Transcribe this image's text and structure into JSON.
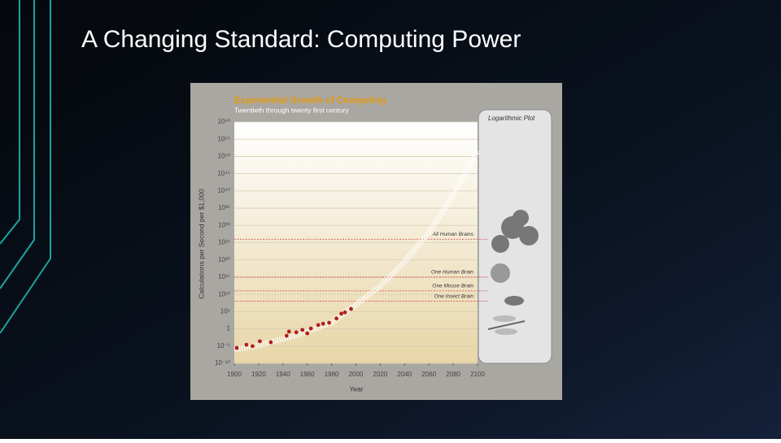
{
  "slide": {
    "title": "A Changing Standard: Computing Power"
  },
  "chart_data": {
    "type": "scatter",
    "title": "Exponential Growth of Computing",
    "subtitle": "Twentieth through twenty first century",
    "x_label": "Year",
    "y_label": "Calculations per Second per $1,000",
    "panel_label": "Logarithmic Plot",
    "log_y": true,
    "grid": true,
    "xlim": [
      1900,
      2100
    ],
    "xticks": [
      1900,
      1920,
      1940,
      1960,
      1980,
      2000,
      2020,
      2040,
      2060,
      2080,
      2100
    ],
    "ylim": [
      1e-10,
      1e+60
    ],
    "yticks": [
      {
        "value": 1e-10,
        "label": "10⁻¹⁰"
      },
      {
        "value": 1e-05,
        "label": "10⁻⁵"
      },
      1,
      {
        "value": 100000.0,
        "label": "10⁵"
      },
      {
        "value": 10000000000.0,
        "label": "10¹⁰"
      },
      {
        "value": 1000000000000000.0,
        "label": "10¹⁵"
      },
      {
        "value": 1e+20,
        "label": "10²⁰"
      },
      {
        "value": 1e+25,
        "label": "10²⁵"
      },
      {
        "value": 1e+30,
        "label": "10³⁰"
      },
      {
        "value": 1e+35,
        "label": "10³⁵"
      },
      {
        "value": 1e+40,
        "label": "10⁴⁰"
      },
      {
        "value": 1e+45,
        "label": "10⁴⁵"
      },
      {
        "value": 1e+50,
        "label": "10⁵⁰"
      },
      {
        "value": 1e+55,
        "label": "10⁵⁵"
      },
      {
        "value": 1e+60,
        "label": "10⁶⁰"
      }
    ],
    "series": [
      {
        "kind": "points",
        "color": "#b01e1e",
        "x": [
          1902,
          1910,
          1915,
          1921,
          1930,
          1943,
          1945,
          1951,
          1956,
          1960,
          1963,
          1969,
          1973,
          1978,
          1984,
          1988,
          1991,
          1996
        ],
        "values": [
          3e-06,
          2.5e-05,
          1e-05,
          0.00025,
          0.00013,
          0.01,
          0.16,
          0.1,
          0.5,
          0.05,
          1.3,
          13,
          30,
          60,
          1000,
          25000,
          60000,
          600000
        ]
      },
      {
        "kind": "projection",
        "color": "#ffffff",
        "x": [
          1900,
          1920,
          1950,
          1980,
          2000,
          2020,
          2040,
          2060,
          2080,
          2100
        ],
        "values": [
          1e-06,
          1.6e-05,
          0.01,
          60,
          10000000.0,
          2500000000000.0,
          3e+19,
          1e+28,
          6e+38,
          5e+51
        ]
      }
    ],
    "reference_line_color": "#d03a3a",
    "reference_lines": [
      {
        "label": "All Human Brains",
        "value": 1e+26
      },
      {
        "label": "One Human Brain",
        "value": 1000000000000000.0
      },
      {
        "label": "One Mouse Brain",
        "value": 100000000000.0
      },
      {
        "label": "One Insect Brain",
        "value": 100000000.0
      }
    ]
  }
}
